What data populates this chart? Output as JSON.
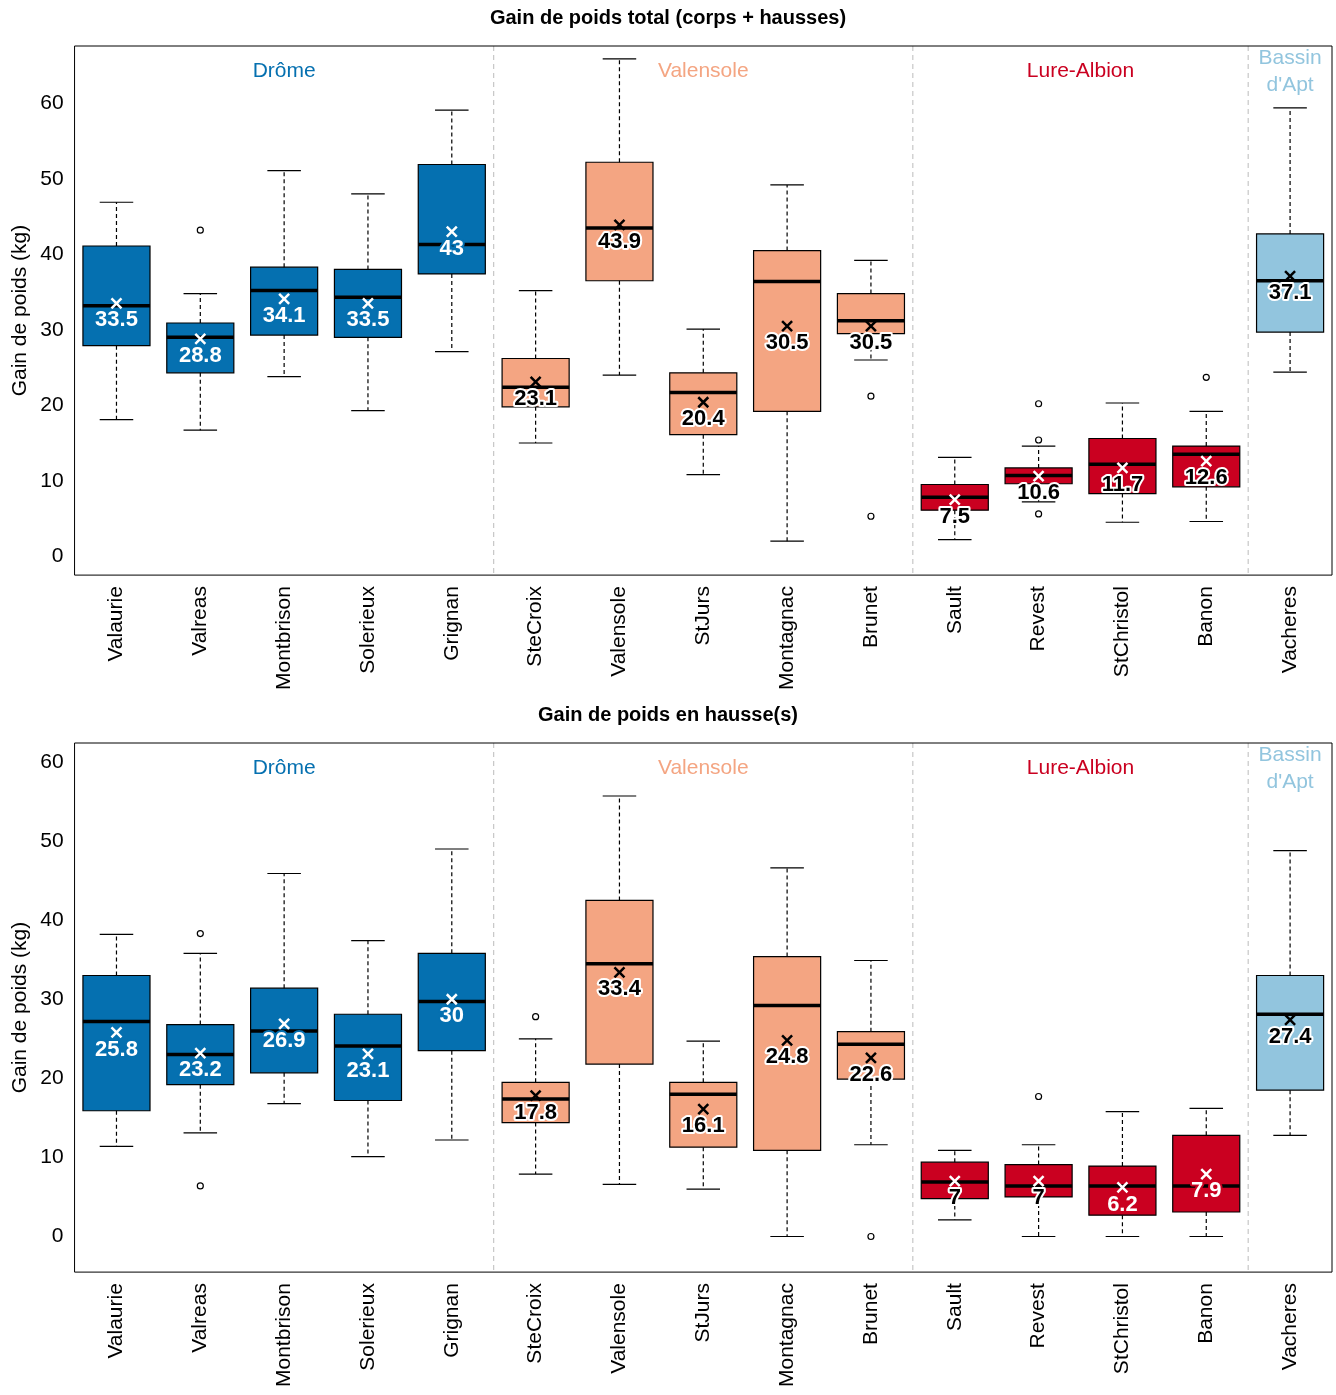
{
  "chart_data": [
    {
      "type": "box",
      "title": "Gain de poids total (corps + hausses)",
      "ylabel": "Gain de poids (kg)",
      "categories": [
        "Valaurie",
        "Valreas",
        "Montbrison",
        "Solerieux",
        "Grignan",
        "SteCroix",
        "Valensole",
        "StJurs",
        "Montagnac",
        "Brunet",
        "Sault",
        "Revest",
        "StChristol",
        "Banon",
        "Vacheres"
      ],
      "series": [
        {
          "name": "Drôme",
          "color": "#0570b0",
          "value_labels": [
            "33.5",
            "28.8",
            "34.1",
            "33.5",
            "43",
            null,
            null,
            null,
            null,
            null,
            null,
            null,
            null,
            null,
            null
          ],
          "boxes": [
            {
              "low": 18.1,
              "q1": 27.9,
              "median": 33.2,
              "q3": 41.1,
              "high": 46.9,
              "mean": 33.5
            },
            {
              "low": 16.7,
              "q1": 24.3,
              "median": 29.0,
              "q3": 30.9,
              "high": 34.8,
              "mean": 28.8,
              "outliers": [
                43.2
              ]
            },
            {
              "low": 23.8,
              "q1": 29.3,
              "median": 35.2,
              "q3": 38.3,
              "high": 51.1,
              "mean": 34.1
            },
            {
              "low": 19.3,
              "q1": 29.0,
              "median": 34.3,
              "q3": 38.0,
              "high": 48.0,
              "mean": 33.5
            },
            {
              "low": 27.1,
              "q1": 37.4,
              "median": 41.3,
              "q3": 51.9,
              "high": 59.1,
              "mean": 43
            },
            null,
            null,
            null,
            null,
            null,
            null,
            null,
            null,
            null,
            null
          ]
        },
        {
          "name": "Valensole",
          "color": "#f4a582",
          "value_labels": [
            null,
            null,
            null,
            null,
            null,
            "23.1",
            "43.9",
            "20.4",
            "30.5",
            "30.5",
            null,
            null,
            null,
            null,
            null
          ],
          "boxes": [
            null,
            null,
            null,
            null,
            null,
            {
              "low": 15.0,
              "q1": 19.8,
              "median": 22.4,
              "q3": 26.2,
              "high": 35.2,
              "mean": 23.1
            },
            {
              "low": 24.0,
              "q1": 36.5,
              "median": 43.5,
              "q3": 52.2,
              "high": 65.9,
              "mean": 43.9
            },
            {
              "low": 10.8,
              "q1": 16.1,
              "median": 21.7,
              "q3": 24.3,
              "high": 30.1,
              "mean": 20.4
            },
            {
              "low": 2.0,
              "q1": 19.2,
              "median": 36.4,
              "q3": 40.5,
              "high": 49.2,
              "mean": 30.5
            },
            {
              "low": 26.0,
              "q1": 29.5,
              "median": 31.2,
              "q3": 34.8,
              "high": 39.2,
              "mean": 30.5,
              "outliers": [
                21.2,
                5.3
              ]
            },
            null,
            null,
            null,
            null,
            null
          ]
        },
        {
          "name": "Lure-Albion",
          "color": "#ca0020",
          "value_labels": [
            null,
            null,
            null,
            null,
            null,
            null,
            null,
            null,
            null,
            null,
            "7.5",
            "10.6",
            "11.7",
            "12.6",
            null
          ],
          "boxes": [
            null,
            null,
            null,
            null,
            null,
            null,
            null,
            null,
            null,
            null,
            {
              "low": 2.2,
              "q1": 6.1,
              "median": 7.8,
              "q3": 9.5,
              "high": 13.1,
              "mean": 7.5
            },
            {
              "low": 7.2,
              "q1": 9.6,
              "median": 10.7,
              "q3": 11.7,
              "high": 14.6,
              "mean": 10.6,
              "outliers": [
                20.2,
                15.4,
                5.6
              ]
            },
            {
              "low": 4.5,
              "q1": 8.3,
              "median": 12.2,
              "q3": 15.6,
              "high": 20.3,
              "mean": 11.7
            },
            {
              "low": 4.6,
              "q1": 9.2,
              "median": 13.5,
              "q3": 14.6,
              "high": 19.2,
              "mean": 12.6,
              "outliers": [
                23.7
              ]
            },
            null
          ]
        },
        {
          "name": "Bassin d'Apt",
          "color": "#92c5de",
          "value_labels": [
            null,
            null,
            null,
            null,
            null,
            null,
            null,
            null,
            null,
            null,
            null,
            null,
            null,
            null,
            "37.1"
          ],
          "boxes": [
            null,
            null,
            null,
            null,
            null,
            null,
            null,
            null,
            null,
            null,
            null,
            null,
            null,
            null,
            {
              "low": 24.4,
              "q1": 29.7,
              "median": 36.5,
              "q3": 42.7,
              "high": 59.4,
              "mean": 37.1
            }
          ]
        }
      ],
      "ylim": [
        -2.5,
        67.6
      ],
      "yticks": [
        0,
        10,
        20,
        30,
        40,
        50,
        60
      ]
    },
    {
      "type": "box",
      "title": "Gain de poids en hausse(s)",
      "ylabel": "Gain de poids (kg)",
      "categories": [
        "Valaurie",
        "Valreas",
        "Montbrison",
        "Solerieux",
        "Grignan",
        "SteCroix",
        "Valensole",
        "StJurs",
        "Montagnac",
        "Brunet",
        "Sault",
        "Revest",
        "StChristol",
        "Banon",
        "Vacheres"
      ],
      "series": [
        {
          "name": "Drôme",
          "color": "#0570b0",
          "value_labels": [
            "25.8",
            "23.2",
            "26.9",
            "23.1",
            "30",
            null,
            null,
            null,
            null,
            null,
            null,
            null,
            null,
            null,
            null
          ],
          "boxes": [
            {
              "low": 11.4,
              "q1": 15.9,
              "median": 27.2,
              "q3": 33.0,
              "high": 38.2,
              "mean": 25.8
            },
            {
              "low": 13.1,
              "q1": 19.2,
              "median": 23.0,
              "q3": 26.8,
              "high": 35.8,
              "mean": 23.2,
              "outliers": [
                38.3,
                6.4
              ]
            },
            {
              "low": 16.8,
              "q1": 20.7,
              "median": 26.0,
              "q3": 31.4,
              "high": 45.9,
              "mean": 26.9
            },
            {
              "low": 10.1,
              "q1": 17.2,
              "median": 24.1,
              "q3": 28.1,
              "high": 37.4,
              "mean": 23.1
            },
            {
              "low": 12.2,
              "q1": 23.5,
              "median": 29.7,
              "q3": 35.8,
              "high": 49.0,
              "mean": 30
            },
            null,
            null,
            null,
            null,
            null,
            null,
            null,
            null,
            null,
            null
          ]
        },
        {
          "name": "Valensole",
          "color": "#f4a582",
          "value_labels": [
            null,
            null,
            null,
            null,
            null,
            "17.8",
            "33.4",
            "16.1",
            "24.8",
            "22.6",
            null,
            null,
            null,
            null,
            null
          ],
          "boxes": [
            null,
            null,
            null,
            null,
            null,
            {
              "low": 7.9,
              "q1": 14.4,
              "median": 17.4,
              "q3": 19.5,
              "high": 25.0,
              "mean": 17.8,
              "outliers": [
                27.8
              ]
            },
            {
              "low": 6.6,
              "q1": 21.8,
              "median": 34.5,
              "q3": 42.5,
              "high": 55.7,
              "mean": 33.4
            },
            {
              "low": 6.0,
              "q1": 11.3,
              "median": 18.0,
              "q3": 19.5,
              "high": 24.7,
              "mean": 16.1
            },
            {
              "low": 0,
              "q1": 10.9,
              "median": 29.2,
              "q3": 35.4,
              "high": 46.6,
              "mean": 24.8
            },
            {
              "low": 11.6,
              "q1": 19.9,
              "median": 24.3,
              "q3": 25.9,
              "high": 34.9,
              "mean": 22.6,
              "outliers": [
                0
              ]
            },
            null,
            null,
            null,
            null,
            null
          ]
        },
        {
          "name": "Lure-Albion",
          "color": "#ca0020",
          "value_labels": [
            null,
            null,
            null,
            null,
            null,
            null,
            null,
            null,
            null,
            null,
            "7",
            "7",
            "6.2",
            "7.9",
            null
          ],
          "boxes": [
            null,
            null,
            null,
            null,
            null,
            null,
            null,
            null,
            null,
            null,
            {
              "low": 2.1,
              "q1": 4.8,
              "median": 6.9,
              "q3": 9.4,
              "high": 10.9,
              "mean": 7
            },
            {
              "low": 0,
              "q1": 5.0,
              "median": 6.4,
              "q3": 9.1,
              "high": 11.6,
              "mean": 7,
              "outliers": [
                17.7
              ]
            },
            {
              "low": 0,
              "q1": 2.7,
              "median": 6.4,
              "q3": 8.9,
              "high": 15.8,
              "mean": 6.2
            },
            {
              "low": 0,
              "q1": 3.1,
              "median": 6.4,
              "q3": 12.8,
              "high": 16.2,
              "mean": 7.9
            },
            null
          ]
        },
        {
          "name": "Bassin d'Apt",
          "color": "#92c5de",
          "value_labels": [
            null,
            null,
            null,
            null,
            null,
            null,
            null,
            null,
            null,
            null,
            null,
            null,
            null,
            null,
            "27.4"
          ],
          "boxes": [
            null,
            null,
            null,
            null,
            null,
            null,
            null,
            null,
            null,
            null,
            null,
            null,
            null,
            null,
            {
              "low": 12.8,
              "q1": 18.5,
              "median": 28.1,
              "q3": 33.0,
              "high": 48.8,
              "mean": 27.4
            }
          ]
        }
      ],
      "ylim": [
        -4.5,
        62.4
      ],
      "yticks": [
        0,
        10,
        20,
        30,
        40,
        50,
        60
      ]
    }
  ]
}
